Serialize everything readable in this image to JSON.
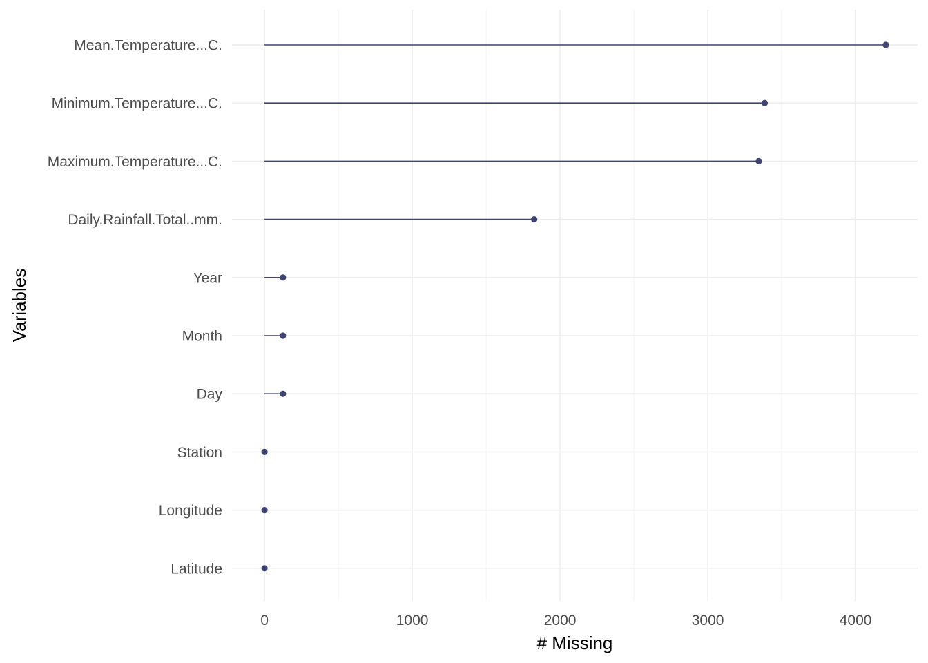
{
  "chart_data": {
    "type": "lollipop",
    "orientation": "horizontal",
    "title": "",
    "xlabel": "# Missing",
    "ylabel": "Variables",
    "xlim": [
      -220,
      4420
    ],
    "x_ticks": [
      0,
      1000,
      2000,
      3000,
      4000
    ],
    "x_tick_labels": [
      "0",
      "1000",
      "2000",
      "3000",
      "4000"
    ],
    "x_minor_ticks": [
      500,
      1500,
      2500,
      3500
    ],
    "grid": true,
    "legend": "none",
    "categories": [
      "Mean.Temperature...C.",
      "Minimum.Temperature...C.",
      "Maximum.Temperature...C.",
      "Daily.Rainfall.Total..mm.",
      "Year",
      "Month",
      "Day",
      "Station",
      "Longitude",
      "Latitude"
    ],
    "values": [
      4205,
      3385,
      3345,
      1825,
      125,
      125,
      125,
      0,
      0,
      0
    ],
    "colors": {
      "point": "#404470",
      "segment": "#404470",
      "grid": "#ebebeb"
    }
  }
}
